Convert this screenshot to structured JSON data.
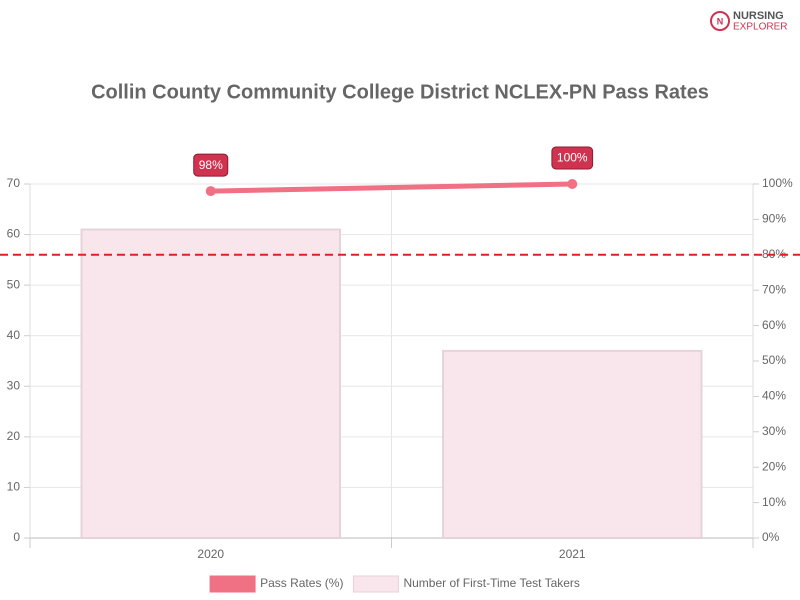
{
  "logo": {
    "line1": "NURSING",
    "line2": "EXPLORER"
  },
  "chart_data": {
    "type": "bar",
    "title": "Collin County Community College District NCLEX-PN Pass Rates",
    "categories": [
      "2020",
      "2021"
    ],
    "series": [
      {
        "name": "Pass Rates (%)",
        "type": "line",
        "axis": "y2",
        "color": "#f07084",
        "values": [
          98,
          100
        ],
        "value_labels": [
          "98%",
          "100%"
        ]
      },
      {
        "name": "Number of First-Time Test Takers",
        "type": "bar",
        "color": "#f9e6ec",
        "values": [
          61,
          37
        ]
      }
    ],
    "ylim": [
      0,
      70
    ],
    "yticks": [
      0,
      10,
      20,
      30,
      40,
      50,
      60,
      70
    ],
    "y2lim": [
      0,
      100
    ],
    "y2ticks": [
      {
        "value": 0,
        "label": "0%"
      },
      {
        "value": 10,
        "label": "10%"
      },
      {
        "value": 20,
        "label": "20%"
      },
      {
        "value": 30,
        "label": "30%"
      },
      {
        "value": 40,
        "label": "40%"
      },
      {
        "value": 50,
        "label": "50%"
      },
      {
        "value": 60,
        "label": "60%"
      },
      {
        "value": 70,
        "label": "70%"
      },
      {
        "value": 80,
        "label": "80%"
      },
      {
        "value": 90,
        "label": "90%"
      },
      {
        "value": 100,
        "label": "100%"
      }
    ],
    "reference_line": {
      "value": 80,
      "axis": "y2",
      "color": "#e02020"
    },
    "grid": true,
    "legend": "bottom"
  }
}
